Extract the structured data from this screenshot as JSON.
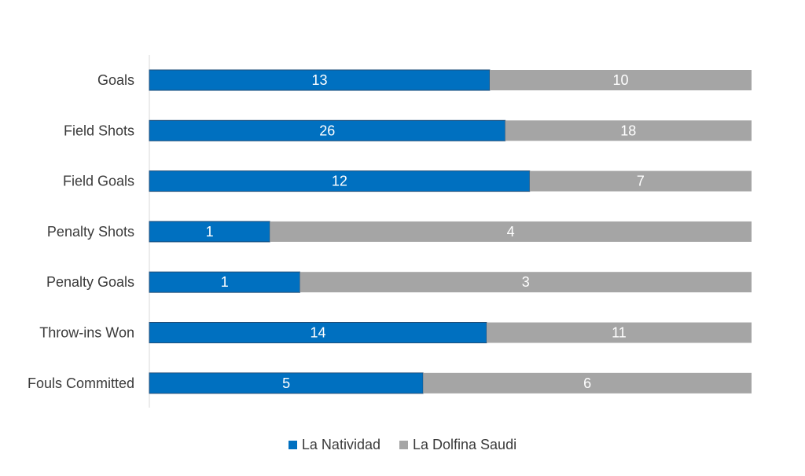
{
  "chart_data": {
    "type": "bar",
    "orientation": "horizontal",
    "stacked": "percent",
    "categories": [
      "Goals",
      "Field Shots",
      "Field Goals",
      "Penalty Shots",
      "Penalty Goals",
      "Throw-ins Won",
      "Fouls Committed"
    ],
    "series": [
      {
        "name": "La Natividad",
        "values": [
          13,
          26,
          12,
          1,
          1,
          14,
          5
        ],
        "color": "#0070c0"
      },
      {
        "name": "La Dolfina Saudi",
        "values": [
          10,
          18,
          7,
          4,
          3,
          11,
          6
        ],
        "color": "#a5a5a5"
      }
    ],
    "legend_position": "bottom",
    "grid": false
  }
}
